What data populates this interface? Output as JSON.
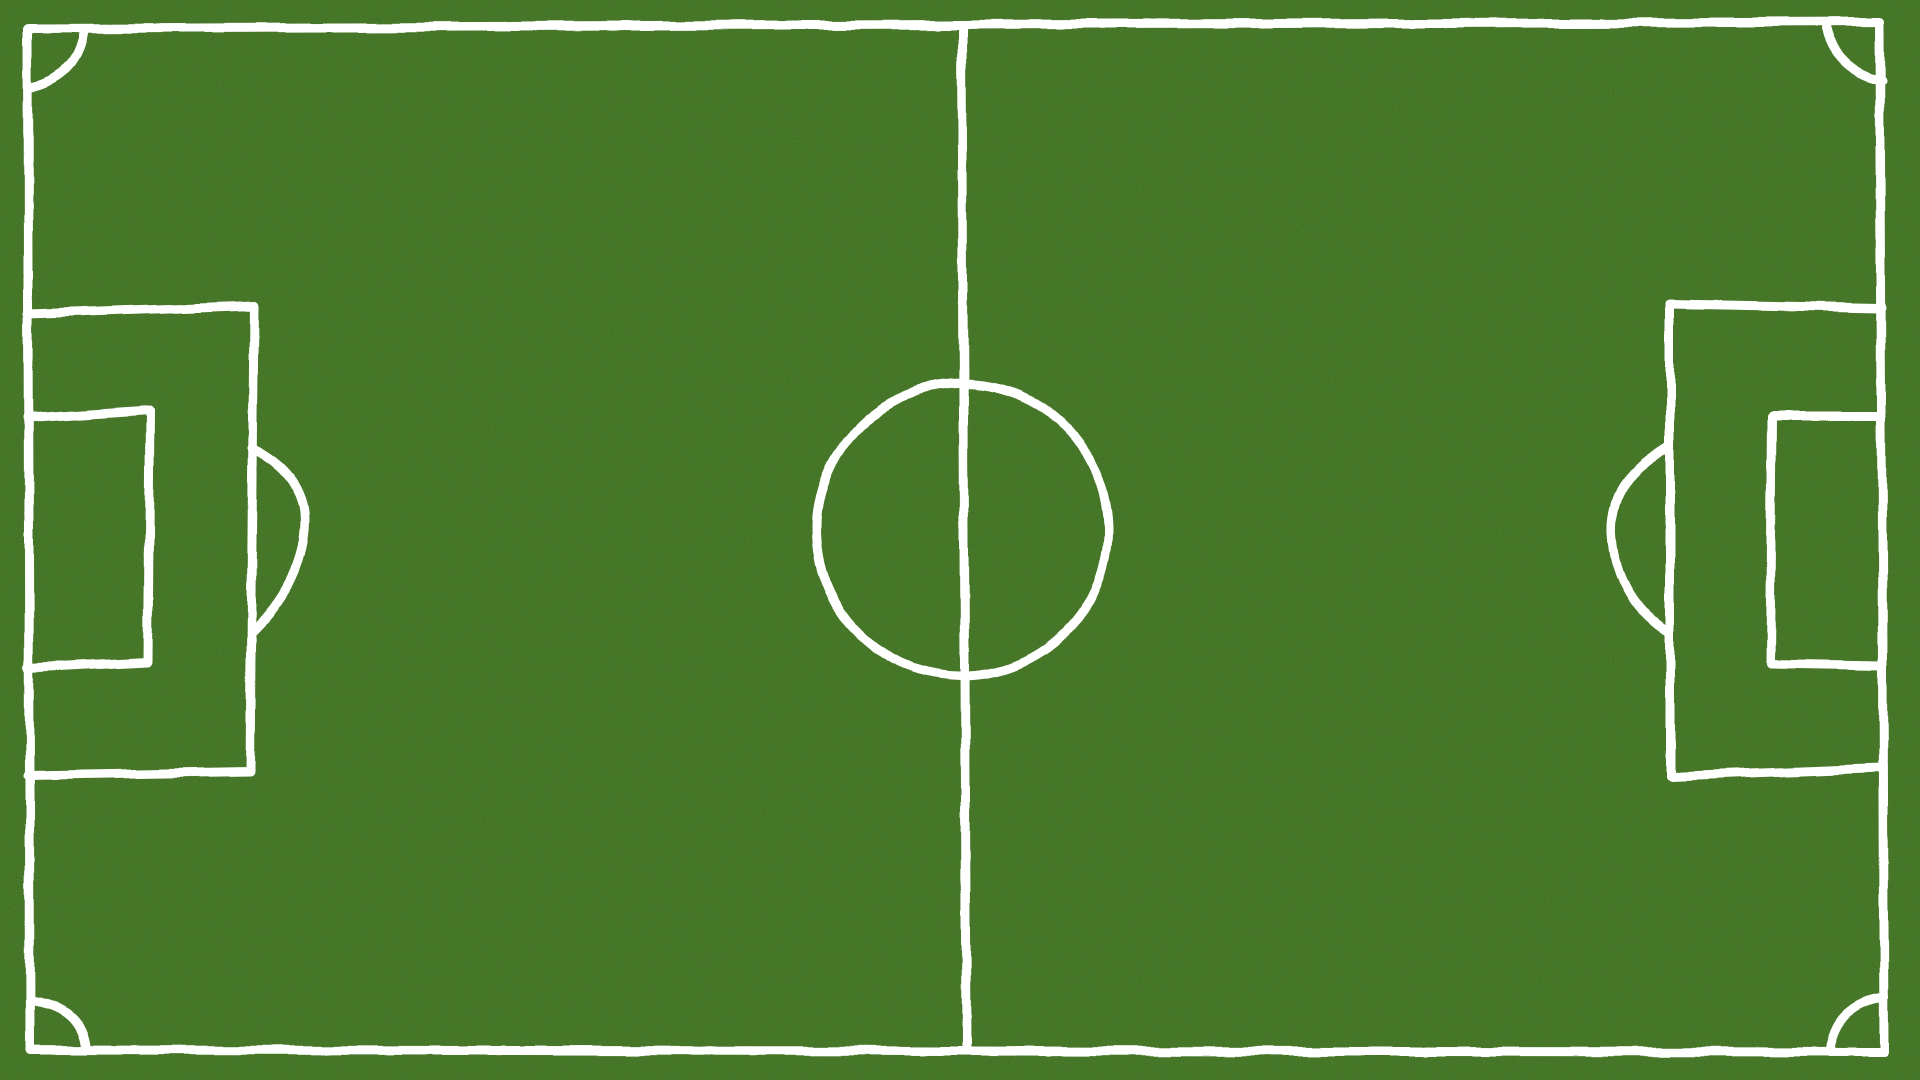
{
  "scene": {
    "subject": "soccer-pitch",
    "view": "top-down",
    "style": "hand-drawn chalk lines on grass"
  },
  "colors": {
    "grass": "#4a7a2e",
    "grass_light": "#5a8a38",
    "grass_dark": "#3f6c27",
    "lines": "#ffffff"
  }
}
